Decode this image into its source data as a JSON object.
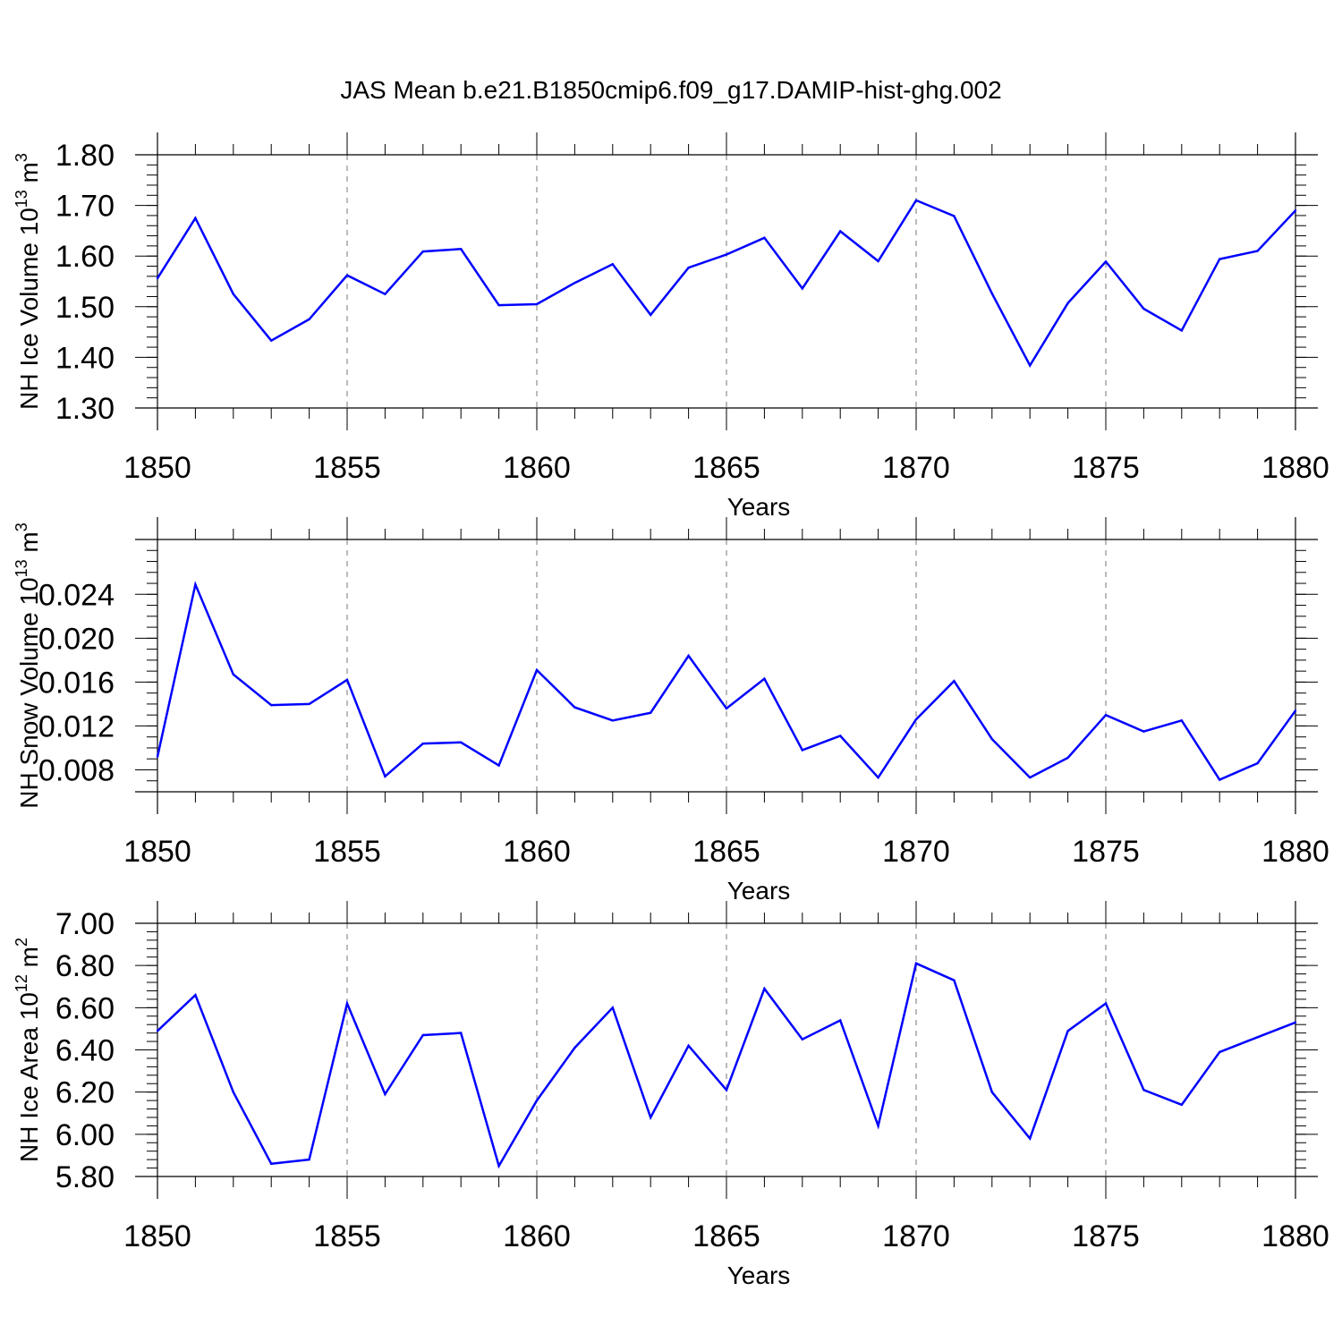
{
  "figure_title": "JAS Mean b.e21.B1850cmip6.f09_g17.DAMIP-hist-ghg.002",
  "colors": {
    "line": "#0000ff",
    "axis": "#000000",
    "grid": "#777777"
  },
  "chart_data": [
    {
      "type": "line",
      "title": "",
      "xlabel": "Years",
      "ylabel": {
        "text": "NH Ice Volume 10",
        "exp": "13",
        "unit": " m",
        "unit_exp": "3"
      },
      "xlim": [
        1850,
        1880
      ],
      "ylim": [
        1.3,
        1.8
      ],
      "xticks": [
        1850,
        1855,
        1860,
        1865,
        1870,
        1875,
        1880
      ],
      "xtick_labels": [
        "1850",
        "1855",
        "1860",
        "1865",
        "1870",
        "1875",
        "1880"
      ],
      "yticks": [
        1.3,
        1.4,
        1.5,
        1.6,
        1.7,
        1.8
      ],
      "ytick_labels": [
        "1.30",
        "1.40",
        "1.50",
        "1.60",
        "1.70",
        "1.80"
      ],
      "yminor_step": 0.02,
      "grid": "vertical dashed at major x ticks",
      "x": [
        1850,
        1851,
        1852,
        1853,
        1854,
        1855,
        1856,
        1857,
        1858,
        1859,
        1860,
        1861,
        1862,
        1863,
        1864,
        1865,
        1866,
        1867,
        1868,
        1869,
        1870,
        1871,
        1872,
        1873,
        1874,
        1875,
        1876,
        1877,
        1878,
        1879,
        1880
      ],
      "values": [
        1.556,
        1.675,
        1.525,
        1.433,
        1.475,
        1.562,
        1.525,
        1.609,
        1.614,
        1.503,
        1.505,
        1.547,
        1.584,
        1.484,
        1.577,
        1.603,
        1.636,
        1.536,
        1.649,
        1.59,
        1.71,
        1.679,
        1.526,
        1.384,
        1.507,
        1.589,
        1.496,
        1.453,
        1.594,
        1.61,
        1.69
      ]
    },
    {
      "type": "line",
      "title": "",
      "xlabel": "Years",
      "ylabel": {
        "text": "NH Snow Volume 10",
        "exp": "13",
        "unit": " m",
        "unit_exp": "3"
      },
      "xlim": [
        1850,
        1880
      ],
      "ylim": [
        0.006,
        0.029
      ],
      "xticks": [
        1850,
        1855,
        1860,
        1865,
        1870,
        1875,
        1880
      ],
      "xtick_labels": [
        "1850",
        "1855",
        "1860",
        "1865",
        "1870",
        "1875",
        "1880"
      ],
      "yticks": [
        0.008,
        0.012,
        0.016,
        0.02,
        0.024
      ],
      "ytick_labels": [
        "0.008",
        "0.012",
        "0.016",
        "0.020",
        "0.024"
      ],
      "yminor_step": 0.001,
      "grid": "vertical dashed at major x ticks",
      "x": [
        1850,
        1851,
        1852,
        1853,
        1854,
        1855,
        1856,
        1857,
        1858,
        1859,
        1860,
        1861,
        1862,
        1863,
        1864,
        1865,
        1866,
        1867,
        1868,
        1869,
        1870,
        1871,
        1872,
        1873,
        1874,
        1875,
        1876,
        1877,
        1878,
        1879,
        1880
      ],
      "values": [
        0.0092,
        0.0249,
        0.0167,
        0.0139,
        0.014,
        0.0162,
        0.0074,
        0.0104,
        0.0105,
        0.0084,
        0.0171,
        0.0137,
        0.0125,
        0.0132,
        0.0184,
        0.0136,
        0.0163,
        0.0098,
        0.0111,
        0.0073,
        0.0126,
        0.0161,
        0.0108,
        0.0073,
        0.0091,
        0.013,
        0.0115,
        0.0125,
        0.0071,
        0.0086,
        0.0134
      ]
    },
    {
      "type": "line",
      "title": "",
      "xlabel": "Years",
      "ylabel": {
        "text": "NH Ice Area 10",
        "exp": "12",
        "unit": " m",
        "unit_exp": "2"
      },
      "xlim": [
        1850,
        1880
      ],
      "ylim": [
        5.8,
        7.0
      ],
      "xticks": [
        1850,
        1855,
        1860,
        1865,
        1870,
        1875,
        1880
      ],
      "xtick_labels": [
        "1850",
        "1855",
        "1860",
        "1865",
        "1870",
        "1875",
        "1880"
      ],
      "yticks": [
        5.8,
        6.0,
        6.2,
        6.4,
        6.6,
        6.8,
        7.0
      ],
      "ytick_labels": [
        "5.80",
        "6.00",
        "6.20",
        "6.40",
        "6.60",
        "6.80",
        "7.00"
      ],
      "yminor_step": 0.04,
      "grid": "vertical dashed at major x ticks",
      "x": [
        1850,
        1851,
        1852,
        1853,
        1854,
        1855,
        1856,
        1857,
        1858,
        1859,
        1860,
        1861,
        1862,
        1863,
        1864,
        1865,
        1866,
        1867,
        1868,
        1869,
        1870,
        1871,
        1872,
        1873,
        1874,
        1875,
        1876,
        1877,
        1878,
        1879,
        1880
      ],
      "values": [
        6.49,
        6.66,
        6.2,
        5.86,
        5.88,
        6.62,
        6.19,
        6.47,
        6.48,
        5.85,
        6.16,
        6.41,
        6.6,
        6.08,
        6.42,
        6.21,
        6.69,
        6.45,
        6.54,
        6.04,
        6.81,
        6.73,
        6.2,
        5.98,
        6.49,
        6.62,
        6.21,
        6.14,
        6.39,
        6.46,
        6.53
      ]
    }
  ]
}
